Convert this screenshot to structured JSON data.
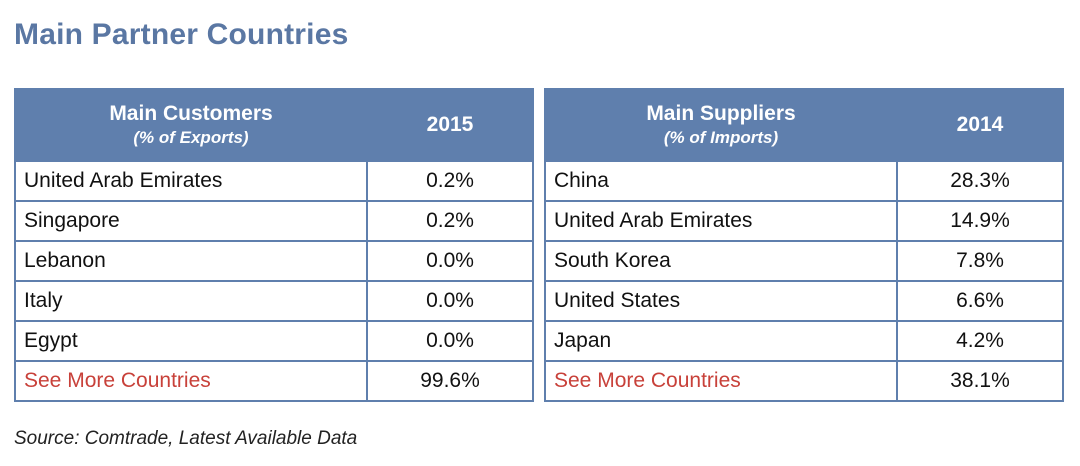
{
  "title": "Main Partner Countries",
  "customers": {
    "header": "Main Customers",
    "subheader": "(% of Exports)",
    "year": "2015",
    "rows": [
      {
        "country": "United Arab Emirates",
        "value": "0.2%"
      },
      {
        "country": "Singapore",
        "value": "0.2%"
      },
      {
        "country": "Lebanon",
        "value": "0.0%"
      },
      {
        "country": "Italy",
        "value": "0.0%"
      },
      {
        "country": "Egypt",
        "value": "0.0%"
      }
    ],
    "see_more": {
      "label": "See More Countries",
      "value": "99.6%"
    }
  },
  "suppliers": {
    "header": "Main Suppliers",
    "subheader": "(% of Imports)",
    "year": "2014",
    "rows": [
      {
        "country": "China",
        "value": "28.3%"
      },
      {
        "country": "United Arab Emirates",
        "value": "14.9%"
      },
      {
        "country": "South Korea",
        "value": "7.8%"
      },
      {
        "country": "United States",
        "value": "6.6%"
      },
      {
        "country": "Japan",
        "value": "4.2%"
      }
    ],
    "see_more": {
      "label": "See More Countries",
      "value": "38.1%"
    }
  },
  "source": "Source: Comtrade, Latest Available Data",
  "colors": {
    "title": "#5a77a3",
    "header_bg": "#5f7fad",
    "border": "#5f7fad",
    "link": "#c8413a"
  }
}
